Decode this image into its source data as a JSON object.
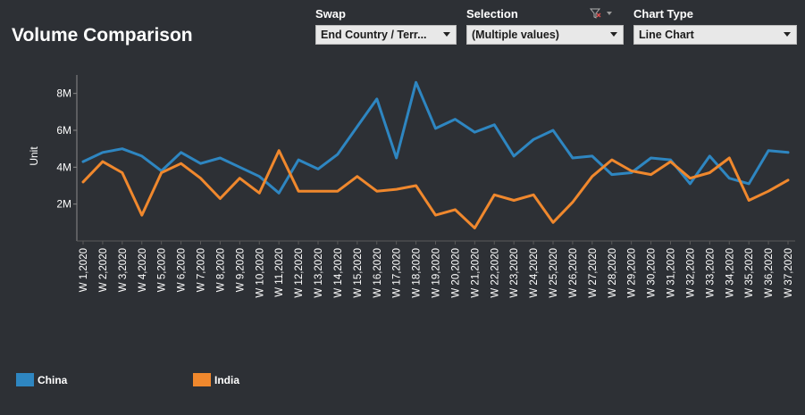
{
  "header": {
    "title": "Volume Comparison"
  },
  "controls": {
    "swap": {
      "label": "Swap",
      "value": "End Country / Terr..."
    },
    "selection": {
      "label": "Selection",
      "value": "(Multiple values)"
    },
    "chart_type": {
      "label": "Chart Type",
      "value": "Line Chart"
    }
  },
  "colors": {
    "china": "#2e86c1",
    "india": "#f0882d",
    "background": "#2d3035"
  },
  "legend": [
    {
      "name": "China",
      "color": "#2e86c1"
    },
    {
      "name": "India",
      "color": "#f0882d"
    }
  ],
  "chart_data": {
    "type": "line",
    "title": "",
    "xlabel": "",
    "ylabel": "Unit",
    "ylim": [
      0,
      9000000
    ],
    "y_ticks": [
      {
        "value": 2000000,
        "label": "2M"
      },
      {
        "value": 4000000,
        "label": "4M"
      },
      {
        "value": 6000000,
        "label": "6M"
      },
      {
        "value": 8000000,
        "label": "8M"
      }
    ],
    "grid": false,
    "legend_position": "bottom-left",
    "categories": [
      "W 1,2020",
      "W 2,2020",
      "W 3,2020",
      "W 4,2020",
      "W 5,2020",
      "W 6,2020",
      "W 7,2020",
      "W 8,2020",
      "W 9,2020",
      "W 10,2020",
      "W 11,2020",
      "W 12,2020",
      "W 13,2020",
      "W 14,2020",
      "W 15,2020",
      "W 16,2020",
      "W 17,2020",
      "W 18,2020",
      "W 19,2020",
      "W 20,2020",
      "W 21,2020",
      "W 22,2020",
      "W 23,2020",
      "W 24,2020",
      "W 25,2020",
      "W 26,2020",
      "W 27,2020",
      "W 28,2020",
      "W 29,2020",
      "W 30,2020",
      "W 31,2020",
      "W 32,2020",
      "W 33,2020",
      "W 34,2020",
      "W 35,2020",
      "W 36,2020",
      "W 37,2020"
    ],
    "series": [
      {
        "name": "China",
        "color": "#2e86c1",
        "values": [
          4300000,
          4800000,
          5000000,
          4600000,
          3800000,
          4800000,
          4200000,
          4500000,
          4000000,
          3500000,
          2600000,
          4400000,
          3900000,
          4700000,
          6200000,
          7700000,
          4500000,
          8600000,
          6100000,
          6600000,
          5900000,
          6300000,
          4600000,
          5500000,
          6000000,
          4500000,
          4600000,
          3600000,
          3700000,
          4500000,
          4400000,
          3100000,
          4600000,
          3400000,
          3100000,
          4900000,
          4800000
        ]
      },
      {
        "name": "India",
        "color": "#f0882d",
        "values": [
          3200000,
          4300000,
          3700000,
          1400000,
          3700000,
          4200000,
          3400000,
          2300000,
          3400000,
          2600000,
          4900000,
          2700000,
          2700000,
          2700000,
          3500000,
          2700000,
          2800000,
          3000000,
          1400000,
          1700000,
          700000,
          2500000,
          2200000,
          2500000,
          1000000,
          2100000,
          3500000,
          4400000,
          3800000,
          3600000,
          4300000,
          3400000,
          3700000,
          4500000,
          2200000,
          2700000,
          3300000
        ]
      }
    ]
  }
}
